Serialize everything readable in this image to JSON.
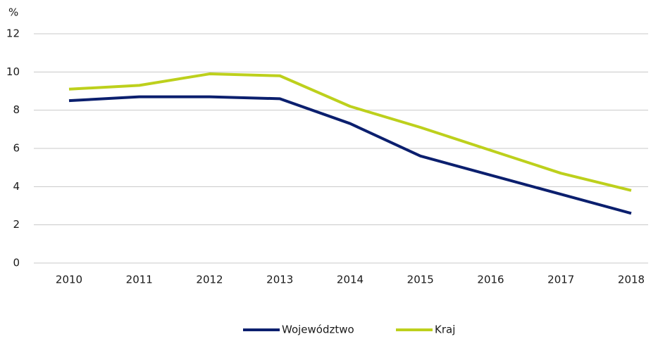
{
  "chart_data": {
    "type": "line",
    "ylabel": "%",
    "categories": [
      "2010",
      "2011",
      "2012",
      "2013",
      "2014",
      "2015",
      "2016",
      "2017",
      "2018"
    ],
    "series": [
      {
        "name": "Województwo",
        "color": "#0b1f6e",
        "values": [
          8.5,
          8.7,
          8.7,
          8.6,
          7.3,
          5.6,
          4.6,
          3.6,
          2.6
        ]
      },
      {
        "name": "Kraj",
        "color": "#bdd01c",
        "values": [
          9.1,
          9.3,
          9.9,
          9.8,
          8.2,
          7.1,
          5.9,
          4.7,
          3.8
        ]
      }
    ],
    "ylim": [
      0,
      12
    ],
    "yticks": [
      0,
      2,
      4,
      6,
      8,
      10,
      12
    ],
    "grid": true,
    "legend": "bottom"
  }
}
